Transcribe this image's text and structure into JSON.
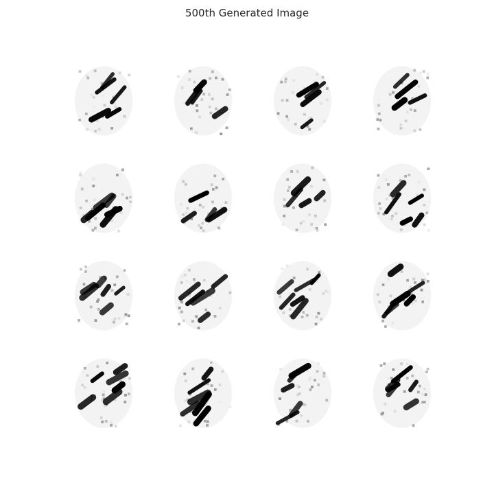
{
  "figure": {
    "title": "500th Generated Image"
  },
  "grid": {
    "rows": 4,
    "cols": 4,
    "cell_content": "noisy generated digit-like stroke patterns (grayscale, black on white)"
  },
  "colors": {
    "background": "#ffffff",
    "stroke": "#000000",
    "title_text": "#262626"
  }
}
